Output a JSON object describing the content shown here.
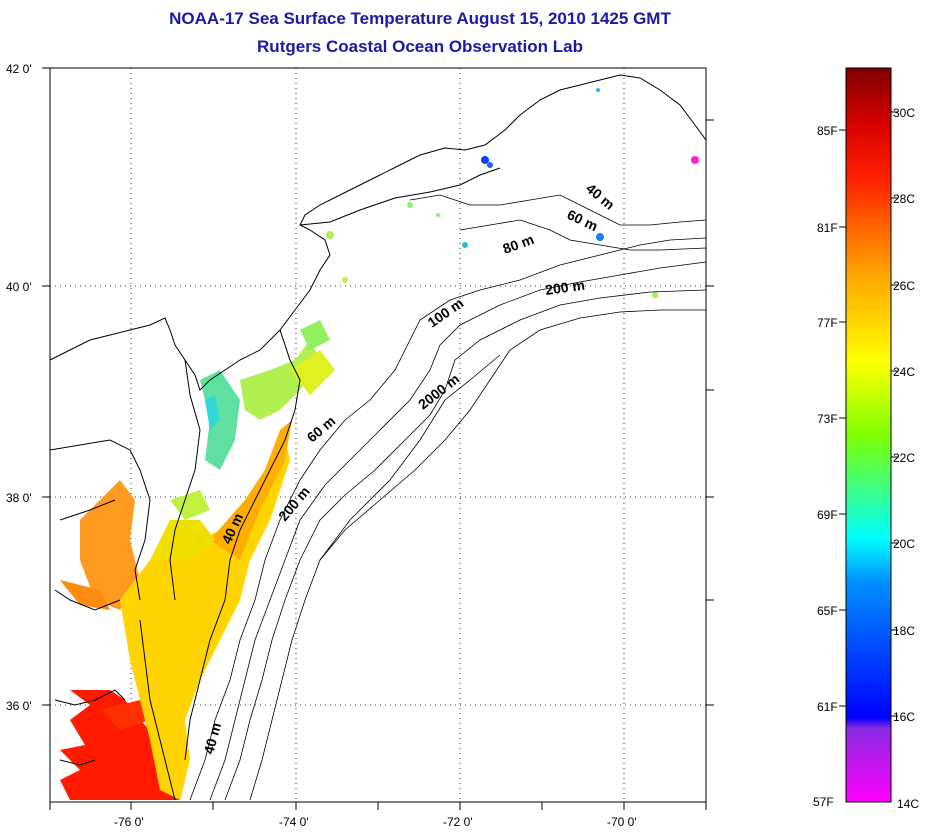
{
  "title": {
    "line1": "NOAA-17 Sea Surface Temperature August 15, 2010 1425 GMT",
    "line2": "Rutgers Coastal Ocean Observation Lab"
  },
  "map": {
    "lat_labels": [
      "42 0'",
      "40 0'",
      "38 0'",
      "36 0'"
    ],
    "lon_labels": [
      "-76 0'",
      "-74 0'",
      "-72 0'",
      "-70 0'"
    ],
    "depth_labels": [
      "40 m",
      "60 m",
      "80 m",
      "200 m",
      "100 m",
      "2000 m",
      "60 m",
      "200 m",
      "40 m",
      "40 m"
    ]
  },
  "colorbar": {
    "fahrenheit_labels": [
      "85F",
      "81F",
      "77F",
      "73F",
      "69F",
      "65F",
      "61F",
      "57F"
    ],
    "celsius_labels": [
      "30C",
      "28C",
      "26C",
      "24C",
      "22C",
      "20C",
      "18C",
      "16C",
      "14C"
    ],
    "colors": [
      "#8b0000",
      "#ff0000",
      "#ff8c00",
      "#ffff00",
      "#7fff00",
      "#00ffff",
      "#0000ff",
      "#8a2be2",
      "#ff00ff"
    ]
  }
}
